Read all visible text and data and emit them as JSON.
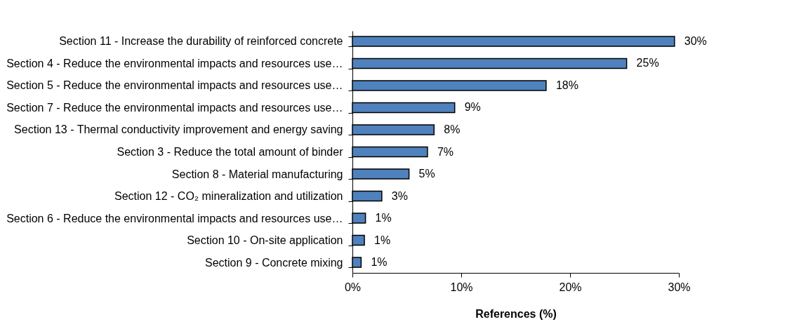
{
  "chart_data": {
    "type": "bar",
    "orientation": "horizontal",
    "xlabel": "References (%)",
    "categories": [
      "Section 11 - Increase the durability of reinforced concrete",
      "Section 4 - Reduce the environmental impacts and resources use…",
      "Section 5 - Reduce the environmental impacts and resources use…",
      "Section 7 - Reduce the environmental impacts and resources use…",
      "Section 13 - Thermal conductivity improvement and energy saving",
      "Section 3 - Reduce the total amount of binder",
      "Section 8 - Material manufacturing",
      "Section 12 - CO₂ mineralization and utilization",
      "Section 6 - Reduce the environmental impacts and resources use…",
      "Section 10 - On-site application",
      "Section 9 - Concrete mixing"
    ],
    "values": [
      29.6,
      25.2,
      17.8,
      9.4,
      7.5,
      6.9,
      5.2,
      2.7,
      1.2,
      1.1,
      0.8
    ],
    "value_labels": [
      "30%",
      "25%",
      "18%",
      "9%",
      "8%",
      "7%",
      "5%",
      "3%",
      "1%",
      "1%",
      "1%"
    ],
    "color": "#4f81bd",
    "xlim": [
      0,
      30
    ],
    "xticks": [
      {
        "value": 0,
        "label": "0%"
      },
      {
        "value": 10,
        "label": "10%"
      },
      {
        "value": 20,
        "label": "20%"
      },
      {
        "value": 30,
        "label": "30%"
      }
    ],
    "grid": false
  }
}
